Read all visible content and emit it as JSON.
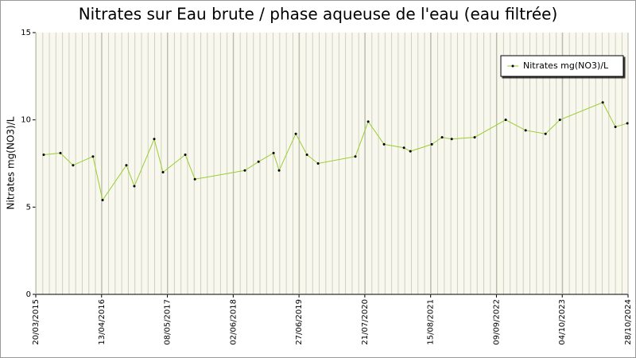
{
  "chart_data": {
    "type": "line",
    "title": "Nitrates sur Eau brute / phase aqueuse de l'eau (eau filtrée)",
    "y_label": "Nitrates mg(NO3)/L",
    "x": [
      "2015-05-06",
      "2015-08-13",
      "2015-10-27",
      "2016-02-22",
      "2016-04-19",
      "2016-09-07",
      "2016-10-24",
      "2017-02-19",
      "2017-04-12",
      "2017-08-22",
      "2017-10-18",
      "2018-08-10",
      "2018-10-30",
      "2019-01-27",
      "2019-03-01",
      "2019-06-08",
      "2019-08-13",
      "2019-10-18",
      "2020-05-26",
      "2020-08-10",
      "2020-11-12",
      "2021-03-10",
      "2021-04-17",
      "2021-08-22",
      "2021-10-22",
      "2021-12-18",
      "2022-05-03",
      "2022-11-03",
      "2023-03-01",
      "2023-06-27",
      "2023-09-20",
      "2024-05-31",
      "2024-08-14",
      "2024-10-24"
    ],
    "series": [
      {
        "name": "Nitrates mg(NO3)/L",
        "color": "#9acd32",
        "values": [
          8.0,
          8.1,
          7.4,
          7.9,
          5.4,
          7.4,
          6.2,
          8.9,
          7.0,
          8.0,
          6.6,
          7.1,
          7.6,
          8.1,
          7.1,
          9.2,
          8.0,
          7.5,
          7.9,
          9.9,
          8.6,
          8.4,
          8.2,
          8.6,
          9.0,
          8.9,
          9.0,
          10.0,
          9.4,
          9.2,
          10.0,
          11.0,
          9.6,
          9.8
        ]
      }
    ],
    "xlim": [
      "2015-03-20",
      "2024-10-28"
    ],
    "xticks": [
      {
        "value": "2015-03-20",
        "label": "20/03/2015"
      },
      {
        "value": "2016-04-13",
        "label": "13/04/2016"
      },
      {
        "value": "2017-05-08",
        "label": "08/05/2017"
      },
      {
        "value": "2018-06-02",
        "label": "02/06/2018"
      },
      {
        "value": "2019-06-27",
        "label": "27/06/2019"
      },
      {
        "value": "2020-07-21",
        "label": "21/07/2020"
      },
      {
        "value": "2021-08-15",
        "label": "15/08/2021"
      },
      {
        "value": "2022-09-09",
        "label": "09/09/2022"
      },
      {
        "value": "2023-10-04",
        "label": "04/10/2023"
      },
      {
        "value": "2024-10-28",
        "label": "28/10/2024"
      }
    ],
    "ylim": [
      0,
      15
    ],
    "yticks": [
      0,
      5,
      10,
      15
    ],
    "grid": true,
    "legend": "upper right"
  }
}
